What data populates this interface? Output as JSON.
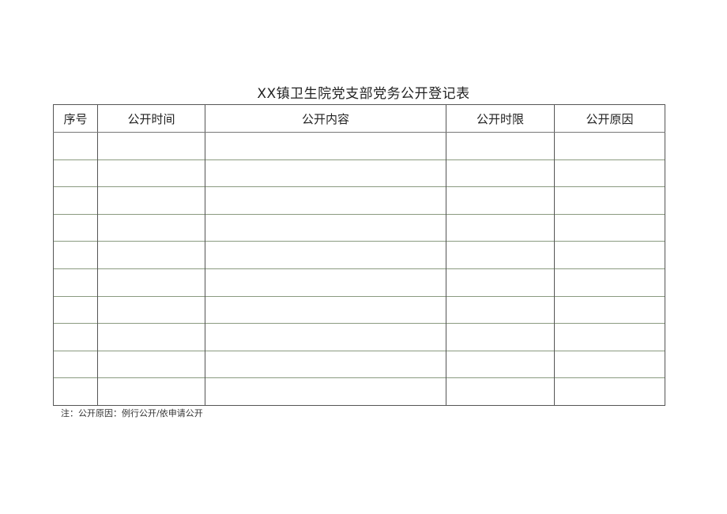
{
  "title": "XX镇卫生院党支部党务公开登记表",
  "table": {
    "headers": [
      "序号",
      "公开时间",
      "公开内容",
      "公开时限",
      "公开原因"
    ],
    "rows": [
      [
        "",
        "",
        "",
        "",
        ""
      ],
      [
        "",
        "",
        "",
        "",
        ""
      ],
      [
        "",
        "",
        "",
        "",
        ""
      ],
      [
        "",
        "",
        "",
        "",
        ""
      ],
      [
        "",
        "",
        "",
        "",
        ""
      ],
      [
        "",
        "",
        "",
        "",
        ""
      ],
      [
        "",
        "",
        "",
        "",
        ""
      ],
      [
        "",
        "",
        "",
        "",
        ""
      ],
      [
        "",
        "",
        "",
        "",
        ""
      ],
      [
        "",
        "",
        "",
        "",
        ""
      ]
    ]
  },
  "note": "注：公开原因：例行公开/依申请公开"
}
